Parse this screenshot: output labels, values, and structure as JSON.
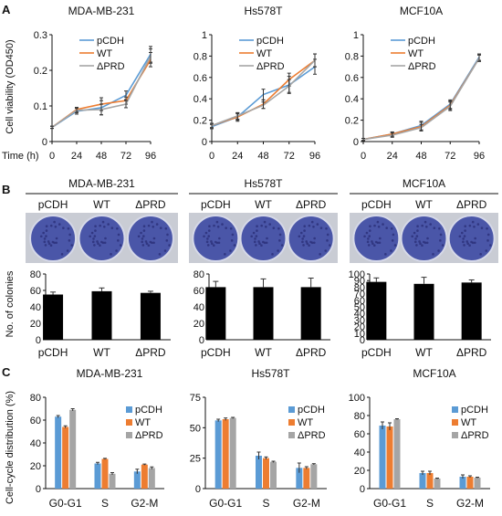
{
  "panels": {
    "A": {
      "letter": "A",
      "ylabel": "Cell viability (OD450)",
      "xlabel": "Time (h)",
      "charts": [
        {
          "title": "MDA-MB-231",
          "type": "line",
          "x": [
            0,
            24,
            48,
            72,
            96
          ],
          "ylim": [
            0,
            0.3
          ],
          "yticks": [
            "0",
            "0.1",
            "0.2",
            "0.3"
          ],
          "series": [
            {
              "name": "pCDH",
              "color": "#5b9bd5",
              "values": [
                0.04,
                0.085,
                0.095,
                0.13,
                0.245
              ],
              "errors": [
                0.003,
                0.008,
                0.02,
                0.012,
                0.022
              ]
            },
            {
              "name": "WT",
              "color": "#ed7d31",
              "values": [
                0.04,
                0.09,
                0.105,
                0.115,
                0.23
              ],
              "errors": [
                0.003,
                0.006,
                0.018,
                0.01,
                0.02
              ]
            },
            {
              "name": "ΔPRD",
              "color": "#a5a5a5",
              "values": [
                0.04,
                0.088,
                0.09,
                0.105,
                0.24
              ],
              "errors": [
                0.003,
                0.007,
                0.015,
                0.01,
                0.02
              ]
            }
          ]
        },
        {
          "title": "Hs578T",
          "type": "line",
          "x": [
            0,
            24,
            48,
            72,
            96
          ],
          "ylim": [
            0,
            1.0
          ],
          "yticks": [
            "0",
            "0.2",
            "0.4",
            "0.6",
            "0.8",
            "1"
          ],
          "series": [
            {
              "name": "pCDH",
              "color": "#5b9bd5",
              "values": [
                0.14,
                0.23,
                0.44,
                0.53,
                0.7
              ],
              "errors": [
                0.02,
                0.04,
                0.05,
                0.08,
                0.07
              ]
            },
            {
              "name": "WT",
              "color": "#ed7d31",
              "values": [
                0.15,
                0.23,
                0.35,
                0.58,
                0.76
              ],
              "errors": [
                0.02,
                0.03,
                0.04,
                0.06,
                0.06
              ]
            },
            {
              "name": "ΔPRD",
              "color": "#a5a5a5",
              "values": [
                0.15,
                0.24,
                0.34,
                0.52,
                0.76
              ],
              "errors": [
                0.02,
                0.03,
                0.03,
                0.06,
                0.06
              ]
            }
          ]
        },
        {
          "title": "MCF10A",
          "type": "line",
          "x": [
            0,
            24,
            48,
            72,
            96
          ],
          "ylim": [
            0,
            1.0
          ],
          "yticks": [
            "0",
            "0.2",
            "0.4",
            "0.6",
            "0.8",
            "1"
          ],
          "series": [
            {
              "name": "pCDH",
              "color": "#5b9bd5",
              "values": [
                0.02,
                0.07,
                0.15,
                0.35,
                0.79
              ],
              "errors": [
                0.01,
                0.02,
                0.04,
                0.04,
                0.03
              ]
            },
            {
              "name": "WT",
              "color": "#ed7d31",
              "values": [
                0.02,
                0.07,
                0.14,
                0.34,
                0.78
              ],
              "errors": [
                0.01,
                0.02,
                0.04,
                0.04,
                0.03
              ]
            },
            {
              "name": "ΔPRD",
              "color": "#a5a5a5",
              "values": [
                0.02,
                0.06,
                0.13,
                0.33,
                0.78
              ],
              "errors": [
                0.01,
                0.02,
                0.03,
                0.04,
                0.03
              ]
            }
          ]
        }
      ]
    },
    "B": {
      "letter": "B",
      "ylabel": "No. of colonies",
      "colors": {
        "plate": "#4a56a8",
        "bar": "#000000"
      },
      "charts": [
        {
          "title": "MDA-MB-231",
          "type": "bar",
          "categories": [
            "pCDH",
            "WT",
            "ΔPRD"
          ],
          "ylim": [
            0,
            80
          ],
          "yticks": [
            "0",
            "20",
            "40",
            "60",
            "80"
          ],
          "values": [
            55,
            59,
            57
          ],
          "errors": [
            3,
            4,
            2
          ]
        },
        {
          "title": "Hs578T",
          "type": "bar",
          "categories": [
            "pCDH",
            "WT",
            "ΔPRD"
          ],
          "ylim": [
            0,
            80
          ],
          "yticks": [
            "0",
            "20",
            "40",
            "60",
            "80"
          ],
          "values": [
            64,
            64,
            64
          ],
          "errors": [
            7,
            10,
            11
          ]
        },
        {
          "title": "MCF10A",
          "type": "bar",
          "categories": [
            "pCDH",
            "WT",
            "ΔPRD"
          ],
          "ylim": [
            0,
            100
          ],
          "yticks": [
            "0",
            "10",
            "20",
            "30",
            "40",
            "50",
            "60",
            "70",
            "80",
            "90",
            "100"
          ],
          "values": [
            88,
            85,
            87
          ],
          "errors": [
            6,
            10,
            4
          ]
        }
      ]
    },
    "C": {
      "letter": "C",
      "ylabel": "Cell-cycle distribution (%)",
      "charts": [
        {
          "title": "MDA-MB-231",
          "type": "bar",
          "categories": [
            "G0-G1",
            "S",
            "G2-M"
          ],
          "ylim": [
            0,
            80
          ],
          "yticks": [
            "0",
            "20",
            "40",
            "60",
            "80"
          ],
          "series": [
            {
              "name": "pCDH",
              "color": "#5b9bd5",
              "values": [
                63,
                22,
                15
              ],
              "errors": [
                1,
                1,
                2
              ]
            },
            {
              "name": "WT",
              "color": "#ed7d31",
              "values": [
                54,
                26,
                21
              ],
              "errors": [
                1,
                0.5,
                0.5
              ]
            },
            {
              "name": "ΔPRD",
              "color": "#a5a5a5",
              "values": [
                69,
                13,
                18
              ],
              "errors": [
                1,
                1,
                1
              ]
            }
          ]
        },
        {
          "title": "Hs578T",
          "type": "bar",
          "categories": [
            "G0-G1",
            "S",
            "G2-M"
          ],
          "ylim": [
            0,
            75
          ],
          "yticks": [
            "0",
            "25",
            "50",
            "75"
          ],
          "series": [
            {
              "name": "pCDH",
              "color": "#5b9bd5",
              "values": [
                56,
                27,
                17
              ],
              "errors": [
                1,
                3,
                4
              ]
            },
            {
              "name": "WT",
              "color": "#ed7d31",
              "values": [
                57,
                25,
                17
              ],
              "errors": [
                1,
                1,
                1
              ]
            },
            {
              "name": "ΔPRD",
              "color": "#a5a5a5",
              "values": [
                58,
                22,
                20
              ],
              "errors": [
                0.5,
                0.5,
                0.5
              ]
            }
          ]
        },
        {
          "title": "MCF10A",
          "type": "bar",
          "categories": [
            "G0-G1",
            "S",
            "G2-M"
          ],
          "ylim": [
            0,
            100
          ],
          "yticks": [
            "0",
            "20",
            "40",
            "60",
            "80",
            "100"
          ],
          "series": [
            {
              "name": "pCDH",
              "color": "#5b9bd5",
              "values": [
                69,
                17,
                13
              ],
              "errors": [
                4,
                2,
                2
              ]
            },
            {
              "name": "WT",
              "color": "#ed7d31",
              "values": [
                68,
                17,
                13
              ],
              "errors": [
                4,
                2,
                1
              ]
            },
            {
              "name": "ΔPRD",
              "color": "#a5a5a5",
              "values": [
                76,
                11,
                12
              ],
              "errors": [
                0.5,
                0.5,
                0.5
              ]
            }
          ]
        }
      ]
    }
  },
  "chart_data": [
    {
      "type": "line",
      "title": "MDA-MB-231",
      "xlabel": "Time (h)",
      "ylabel": "Cell viability (OD450)",
      "x": [
        0,
        24,
        48,
        72,
        96
      ],
      "ylim": [
        0,
        0.3
      ],
      "series": [
        {
          "name": "pCDH",
          "values": [
            0.04,
            0.085,
            0.095,
            0.13,
            0.245
          ]
        },
        {
          "name": "WT",
          "values": [
            0.04,
            0.09,
            0.105,
            0.115,
            0.23
          ]
        },
        {
          "name": "ΔPRD",
          "values": [
            0.04,
            0.088,
            0.09,
            0.105,
            0.24
          ]
        }
      ]
    },
    {
      "type": "line",
      "title": "Hs578T",
      "xlabel": "Time (h)",
      "x": [
        0,
        24,
        48,
        72,
        96
      ],
      "ylim": [
        0,
        1
      ],
      "series": [
        {
          "name": "pCDH",
          "values": [
            0.14,
            0.23,
            0.44,
            0.53,
            0.7
          ]
        },
        {
          "name": "WT",
          "values": [
            0.15,
            0.23,
            0.35,
            0.58,
            0.76
          ]
        },
        {
          "name": "ΔPRD",
          "values": [
            0.15,
            0.24,
            0.34,
            0.52,
            0.76
          ]
        }
      ]
    },
    {
      "type": "line",
      "title": "MCF10A",
      "xlabel": "Time (h)",
      "x": [
        0,
        24,
        48,
        72,
        96
      ],
      "ylim": [
        0,
        1
      ],
      "series": [
        {
          "name": "pCDH",
          "values": [
            0.02,
            0.07,
            0.15,
            0.35,
            0.79
          ]
        },
        {
          "name": "WT",
          "values": [
            0.02,
            0.07,
            0.14,
            0.34,
            0.78
          ]
        },
        {
          "name": "ΔPRD",
          "values": [
            0.02,
            0.06,
            0.13,
            0.33,
            0.78
          ]
        }
      ]
    },
    {
      "type": "bar",
      "title": "MDA-MB-231",
      "ylabel": "No. of colonies",
      "categories": [
        "pCDH",
        "WT",
        "ΔPRD"
      ],
      "values": [
        55,
        59,
        57
      ],
      "ylim": [
        0,
        80
      ]
    },
    {
      "type": "bar",
      "title": "Hs578T",
      "categories": [
        "pCDH",
        "WT",
        "ΔPRD"
      ],
      "values": [
        64,
        64,
        64
      ],
      "ylim": [
        0,
        80
      ]
    },
    {
      "type": "bar",
      "title": "MCF10A",
      "categories": [
        "pCDH",
        "WT",
        "ΔPRD"
      ],
      "values": [
        88,
        85,
        87
      ],
      "ylim": [
        0,
        100
      ]
    },
    {
      "type": "bar",
      "title": "MDA-MB-231",
      "ylabel": "Cell-cycle distribution (%)",
      "categories": [
        "G0-G1",
        "S",
        "G2-M"
      ],
      "ylim": [
        0,
        80
      ],
      "series": [
        {
          "name": "pCDH",
          "values": [
            63,
            22,
            15
          ]
        },
        {
          "name": "WT",
          "values": [
            54,
            26,
            21
          ]
        },
        {
          "name": "ΔPRD",
          "values": [
            69,
            13,
            18
          ]
        }
      ]
    },
    {
      "type": "bar",
      "title": "Hs578T",
      "categories": [
        "G0-G1",
        "S",
        "G2-M"
      ],
      "ylim": [
        0,
        75
      ],
      "series": [
        {
          "name": "pCDH",
          "values": [
            56,
            27,
            17
          ]
        },
        {
          "name": "WT",
          "values": [
            57,
            25,
            17
          ]
        },
        {
          "name": "ΔPRD",
          "values": [
            58,
            22,
            20
          ]
        }
      ]
    },
    {
      "type": "bar",
      "title": "MCF10A",
      "categories": [
        "G0-G1",
        "S",
        "G2-M"
      ],
      "ylim": [
        0,
        100
      ],
      "series": [
        {
          "name": "pCDH",
          "values": [
            69,
            17,
            13
          ]
        },
        {
          "name": "WT",
          "values": [
            68,
            17,
            13
          ]
        },
        {
          "name": "ΔPRD",
          "values": [
            76,
            11,
            12
          ]
        }
      ]
    }
  ]
}
